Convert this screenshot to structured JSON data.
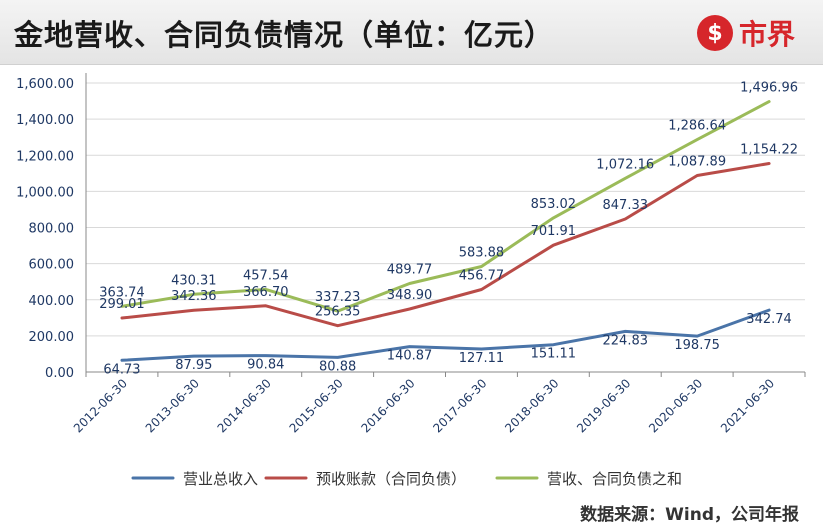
{
  "header": {
    "title": "金地营收、合同负债情况（单位：亿元）",
    "logo_glyph": "$",
    "logo_text": "市界"
  },
  "source": "数据来源：Wind，公司年报",
  "colors": {
    "blue": "#4a74a8",
    "red": "#b94c48",
    "green": "#9bbb59",
    "axis": "#888888",
    "grid": "#d9d9d9",
    "tick_text": "#1f3864"
  },
  "chart_data": {
    "type": "line",
    "categories": [
      "2012-06-30",
      "2013-06-30",
      "2014-06-30",
      "2015-06-30",
      "2016-06-30",
      "2017-06-30",
      "2018-06-30",
      "2019-06-30",
      "2020-06-30",
      "2021-06-30"
    ],
    "ylim": [
      0,
      1600
    ],
    "yticks": [
      "0.00",
      "200.00",
      "400.00",
      "600.00",
      "800.00",
      "1,000.00",
      "1,200.00",
      "1,400.00",
      "1,600.00"
    ],
    "legend_position": "bottom",
    "series": [
      {
        "name": "营业总收入",
        "color": "#4a74a8",
        "values": [
          64.73,
          87.95,
          90.84,
          80.88,
          140.87,
          127.11,
          151.11,
          224.83,
          198.75,
          342.74
        ],
        "labels": [
          "64.73",
          "87.95",
          "90.84",
          "80.88",
          "140.87",
          "127.11",
          "151.11",
          "224.83",
          "198.75",
          "342.74"
        ]
      },
      {
        "name": "预收账款（合同负债）",
        "color": "#b94c48",
        "values": [
          299.01,
          342.36,
          366.7,
          256.35,
          348.9,
          456.77,
          701.91,
          847.33,
          1087.89,
          1154.22
        ],
        "labels": [
          "299.01",
          "342.36",
          "366.70",
          "256.35",
          "348.90",
          "456.77",
          "701.91",
          "847.33",
          "1,087.89",
          "1,154.22"
        ]
      },
      {
        "name": "营收、合同负债之和",
        "color": "#9bbb59",
        "values": [
          363.74,
          430.31,
          457.54,
          337.23,
          489.77,
          583.88,
          853.02,
          1072.16,
          1286.64,
          1496.96
        ],
        "labels": [
          "363.74",
          "430.31",
          "457.54",
          "337.23",
          "489.77",
          "583.88",
          "853.02",
          "1,072.16",
          "1,286.64",
          "1,496.96"
        ]
      }
    ]
  }
}
